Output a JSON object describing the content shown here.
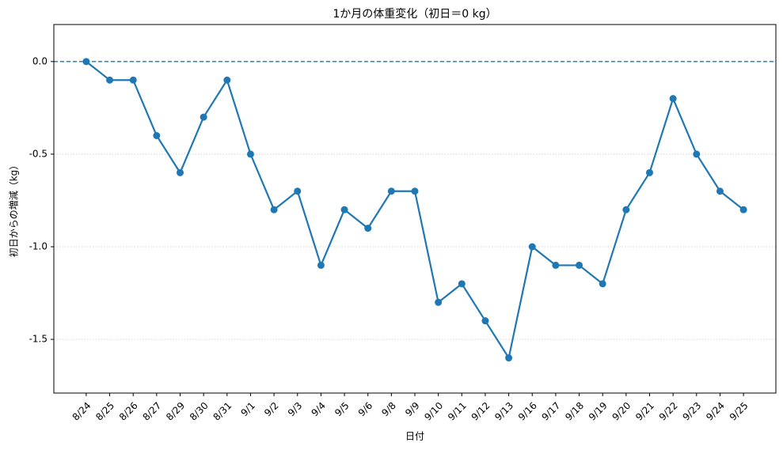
{
  "chart_data": {
    "type": "line",
    "title": "1か月の体重変化（初日＝0 kg）",
    "xlabel": "日付",
    "ylabel": "初日からの増減（kg）",
    "categories": [
      "8/24",
      "8/25",
      "8/26",
      "8/27",
      "8/29",
      "8/30",
      "8/31",
      "9/1",
      "9/2",
      "9/3",
      "9/4",
      "9/5",
      "9/6",
      "9/8",
      "9/9",
      "9/10",
      "9/11",
      "9/12",
      "9/13",
      "9/16",
      "9/17",
      "9/18",
      "9/19",
      "9/20",
      "9/21",
      "9/22",
      "9/23",
      "9/24",
      "9/25"
    ],
    "values": [
      0,
      -0.1,
      -0.1,
      -0.4,
      -0.6,
      -0.3,
      -0.1,
      -0.5,
      -0.8,
      -0.7,
      -1.1,
      -0.8,
      -0.9,
      -0.7,
      -0.7,
      -1.3,
      -1.2,
      -1.4,
      -1.6,
      -1.0,
      -1.1,
      -1.1,
      -1.2,
      -0.8,
      -0.6,
      -0.2,
      -0.5,
      -0.7,
      -0.8
    ],
    "color": "#1f77b4",
    "ylim": [
      -1.79,
      0.2
    ],
    "yticks": [
      {
        "value": 0,
        "label": "0.0"
      },
      -0.5,
      {
        "value": -1,
        "label": "-1.0"
      },
      -1.5
    ],
    "grid": true,
    "reference_line": 0
  }
}
